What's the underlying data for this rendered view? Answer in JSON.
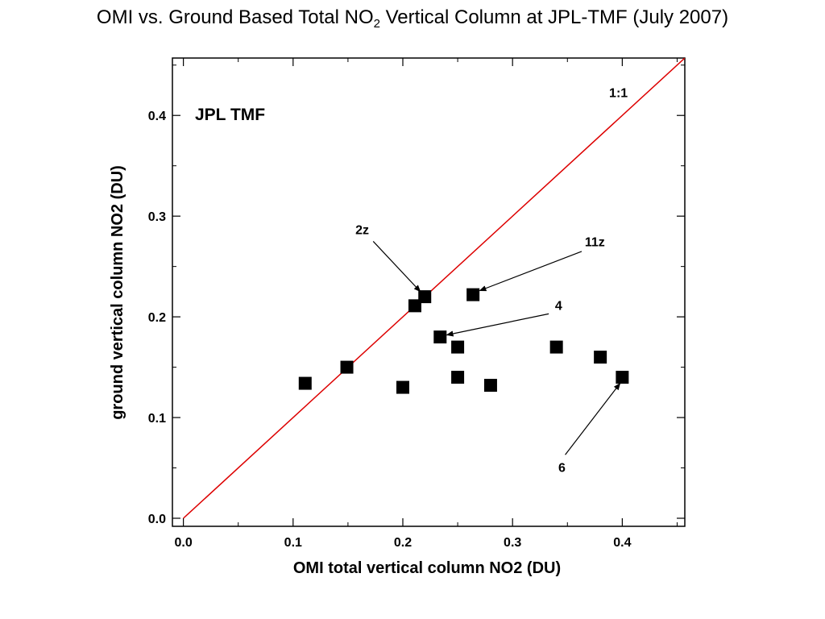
{
  "title": {
    "prefix": "OMI vs. Ground Based Total NO",
    "subscript": "2",
    "suffix": " Vertical Column at JPL-TMF (July 2007)"
  },
  "chart_data": {
    "type": "scatter",
    "title": "OMI vs. Ground Based Total NO2 Vertical Column at JPL-TMF (July 2007)",
    "xlabel": "OMI total vertical column NO2 (DU)",
    "ylabel": "ground vertical column NO2 (DU)",
    "xlim": [
      -0.01,
      0.457
    ],
    "ylim": [
      -0.008,
      0.457
    ],
    "xticks": [
      0.0,
      0.1,
      0.2,
      0.3,
      0.4
    ],
    "xtick_labels": [
      "0.0",
      "0.1",
      "0.2",
      "0.3",
      "0.4"
    ],
    "yticks": [
      0.0,
      0.1,
      0.2,
      0.3,
      0.4
    ],
    "ytick_labels": [
      "0.0",
      "0.1",
      "0.2",
      "0.3",
      "0.4"
    ],
    "grid": false,
    "marker": "square",
    "marker_color": "#000000",
    "line_color": "#dd0000",
    "site_label": "JPL TMF",
    "ref_line": {
      "label": "1:1",
      "slope": 1,
      "intercept": 0
    },
    "points": [
      {
        "x": 0.111,
        "y": 0.134
      },
      {
        "x": 0.149,
        "y": 0.15
      },
      {
        "x": 0.2,
        "y": 0.13
      },
      {
        "x": 0.211,
        "y": 0.211
      },
      {
        "x": 0.22,
        "y": 0.22
      },
      {
        "x": 0.234,
        "y": 0.18
      },
      {
        "x": 0.25,
        "y": 0.17
      },
      {
        "x": 0.25,
        "y": 0.14
      },
      {
        "x": 0.264,
        "y": 0.222
      },
      {
        "x": 0.28,
        "y": 0.132
      },
      {
        "x": 0.34,
        "y": 0.17
      },
      {
        "x": 0.38,
        "y": 0.16
      },
      {
        "x": 0.4,
        "y": 0.14
      }
    ],
    "annotations": [
      {
        "text": "2z",
        "text_x": 0.163,
        "text_y": 0.282,
        "arrow_from": [
          0.173,
          0.275
        ],
        "arrow_to": [
          0.216,
          0.225
        ]
      },
      {
        "text": "11z",
        "text_x": 0.375,
        "text_y": 0.27,
        "arrow_from": [
          0.363,
          0.265
        ],
        "arrow_to": [
          0.27,
          0.226
        ]
      },
      {
        "text": "4",
        "text_x": 0.342,
        "text_y": 0.207,
        "arrow_from": [
          0.333,
          0.203
        ],
        "arrow_to": [
          0.24,
          0.182
        ]
      },
      {
        "text": "6",
        "text_x": 0.345,
        "text_y": 0.046,
        "arrow_from": [
          0.348,
          0.063
        ],
        "arrow_to": [
          0.398,
          0.134
        ]
      }
    ]
  }
}
